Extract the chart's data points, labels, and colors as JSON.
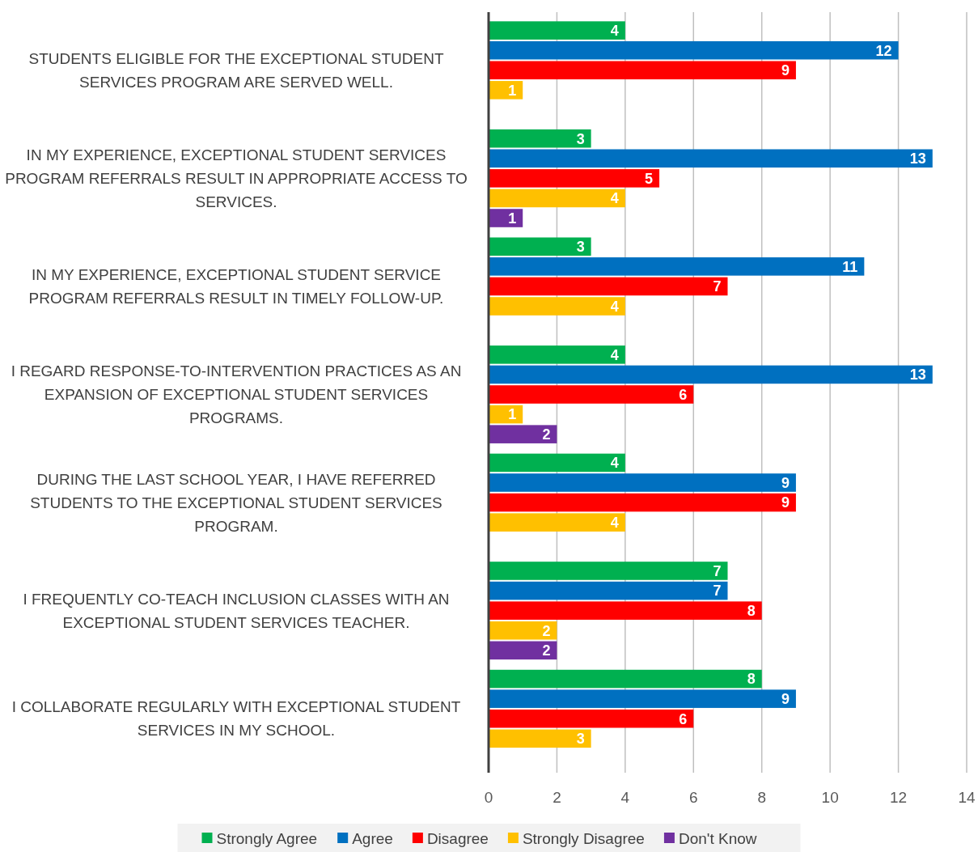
{
  "chart_data": {
    "type": "bar",
    "orientation": "horizontal",
    "categories": [
      "STUDENTS ELIGIBLE FOR THE EXCEPTIONAL STUDENT SERVICES PROGRAM ARE SERVED WELL.",
      "IN MY EXPERIENCE, EXCEPTIONAL STUDENT SERVICES PROGRAM REFERRALS RESULT IN APPROPRIATE ACCESS TO SERVICES.",
      "IN MY EXPERIENCE, EXCEPTIONAL STUDENT SERVICE PROGRAM REFERRALS RESULT IN TIMELY FOLLOW-UP.",
      "I REGARD RESPONSE-TO-INTERVENTION PRACTICES AS AN EXPANSION OF EXCEPTIONAL STUDENT SERVICES PROGRAMS.",
      "DURING THE LAST SCHOOL YEAR, I HAVE REFERRED STUDENTS TO THE EXCEPTIONAL STUDENT SERVICES PROGRAM.",
      "I FREQUENTLY CO-TEACH INCLUSION CLASSES WITH AN EXCEPTIONAL STUDENT SERVICES TEACHER.",
      "I COLLABORATE REGULARLY WITH EXCEPTIONAL STUDENT SERVICES IN MY SCHOOL."
    ],
    "series": [
      {
        "name": "Strongly Agree",
        "color": "#00b050",
        "values": [
          4,
          3,
          3,
          4,
          4,
          7,
          8
        ]
      },
      {
        "name": "Agree",
        "color": "#0070c0",
        "values": [
          12,
          13,
          11,
          13,
          9,
          7,
          9
        ]
      },
      {
        "name": "Disagree",
        "color": "#ff0000",
        "values": [
          9,
          5,
          7,
          6,
          9,
          8,
          6
        ]
      },
      {
        "name": "Strongly Disagree",
        "color": "#ffc000",
        "values": [
          1,
          4,
          4,
          1,
          4,
          2,
          3
        ]
      },
      {
        "name": "Don't Know",
        "color": "#7030a0",
        "values": [
          null,
          1,
          null,
          2,
          null,
          2,
          null
        ]
      }
    ],
    "xlim": [
      0,
      14
    ],
    "xticks": [
      0,
      2,
      4,
      6,
      8,
      10,
      12,
      14
    ],
    "grid": "x",
    "legend": "bottom",
    "data_labels": true
  }
}
